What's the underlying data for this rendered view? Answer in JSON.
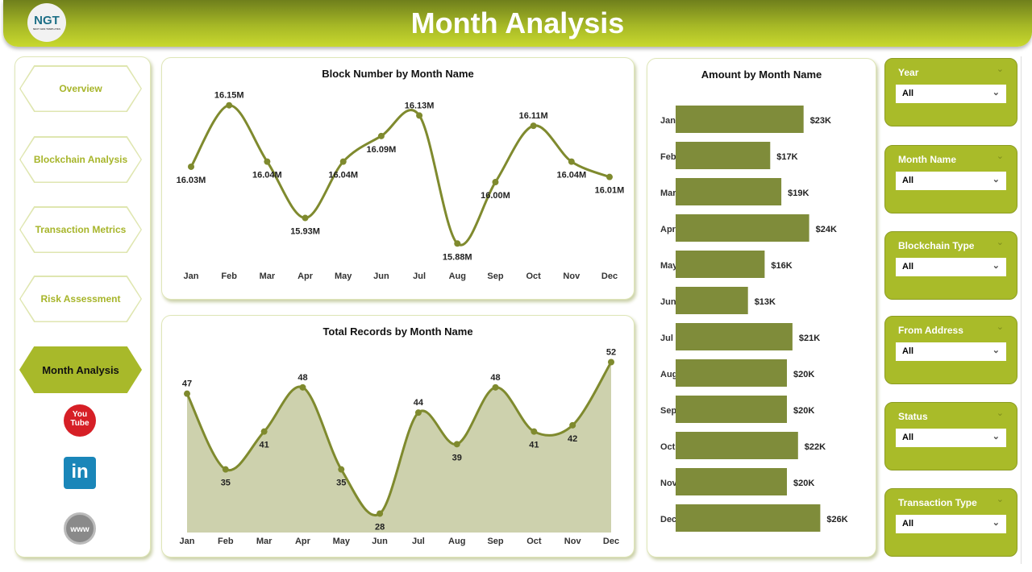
{
  "header": {
    "title": "Month Analysis",
    "logo_text": "NGT",
    "logo_sub": "NEXT GEN TEMPLATES"
  },
  "nav": {
    "items": [
      {
        "label": "Overview"
      },
      {
        "label": "Blockchain Analysis"
      },
      {
        "label": "Transaction Metrics"
      },
      {
        "label": "Risk Assessment"
      },
      {
        "label": "Month Analysis",
        "active": true
      }
    ],
    "social": [
      {
        "icon": "youtube-icon",
        "text": "You Tube"
      },
      {
        "icon": "linkedin-icon",
        "text": "in"
      },
      {
        "icon": "website-icon",
        "text": "www"
      }
    ]
  },
  "colors": {
    "accent": "#a9bb29",
    "series": "#7f8a2e",
    "area": "#cdd1ad",
    "bar": "#7f8c3a"
  },
  "slicers": [
    {
      "label": "Year",
      "value": "All"
    },
    {
      "label": "Month Name",
      "value": "All"
    },
    {
      "label": "Blockchain Type",
      "value": "All"
    },
    {
      "label": "From Address",
      "value": "All"
    },
    {
      "label": "Status",
      "value": "All"
    },
    {
      "label": "Transaction Type",
      "value": "All"
    }
  ],
  "chart_data": [
    {
      "type": "line",
      "title": "Block Number by Month Name",
      "categories": [
        "Jan",
        "Feb",
        "Mar",
        "Apr",
        "May",
        "Jun",
        "Jul",
        "Aug",
        "Sep",
        "Oct",
        "Nov",
        "Dec"
      ],
      "values": [
        16.03,
        16.15,
        16.04,
        15.93,
        16.04,
        16.09,
        16.13,
        15.88,
        16.0,
        16.11,
        16.04,
        16.01
      ],
      "labels": [
        "16.03M",
        "16.15M",
        "16.04M",
        "15.93M",
        "16.04M",
        "16.09M",
        "16.13M",
        "15.88M",
        "16.00M",
        "16.11M",
        "16.04M",
        "16.01M"
      ],
      "unit": "M",
      "ylim": [
        15.86,
        16.17
      ],
      "grid": false
    },
    {
      "type": "area",
      "title": "Total Records by Month Name",
      "categories": [
        "Jan",
        "Feb",
        "Mar",
        "Apr",
        "May",
        "Jun",
        "Jul",
        "Aug",
        "Sep",
        "Oct",
        "Nov",
        "Dec"
      ],
      "values": [
        47,
        35,
        41,
        48,
        35,
        28,
        44,
        39,
        48,
        41,
        42,
        52
      ],
      "labels": [
        "47",
        "35",
        "41",
        "48",
        "35",
        "28",
        "44",
        "39",
        "48",
        "41",
        "42",
        "52"
      ],
      "ylim": [
        25,
        55
      ],
      "grid": false
    },
    {
      "type": "bar",
      "orientation": "horizontal",
      "title": "Amount by Month Name",
      "categories": [
        "Jan",
        "Feb",
        "Mar",
        "Apr",
        "May",
        "Jun",
        "Jul",
        "Aug",
        "Sep",
        "Oct",
        "Nov",
        "Dec"
      ],
      "values": [
        23,
        17,
        19,
        24,
        16,
        13,
        21,
        20,
        20,
        22,
        20,
        26
      ],
      "labels": [
        "$23K",
        "$17K",
        "$19K",
        "$24K",
        "$16K",
        "$13K",
        "$21K",
        "$20K",
        "$20K",
        "$22K",
        "$20K",
        "$26K"
      ],
      "unit": "K$",
      "grid": false
    }
  ]
}
